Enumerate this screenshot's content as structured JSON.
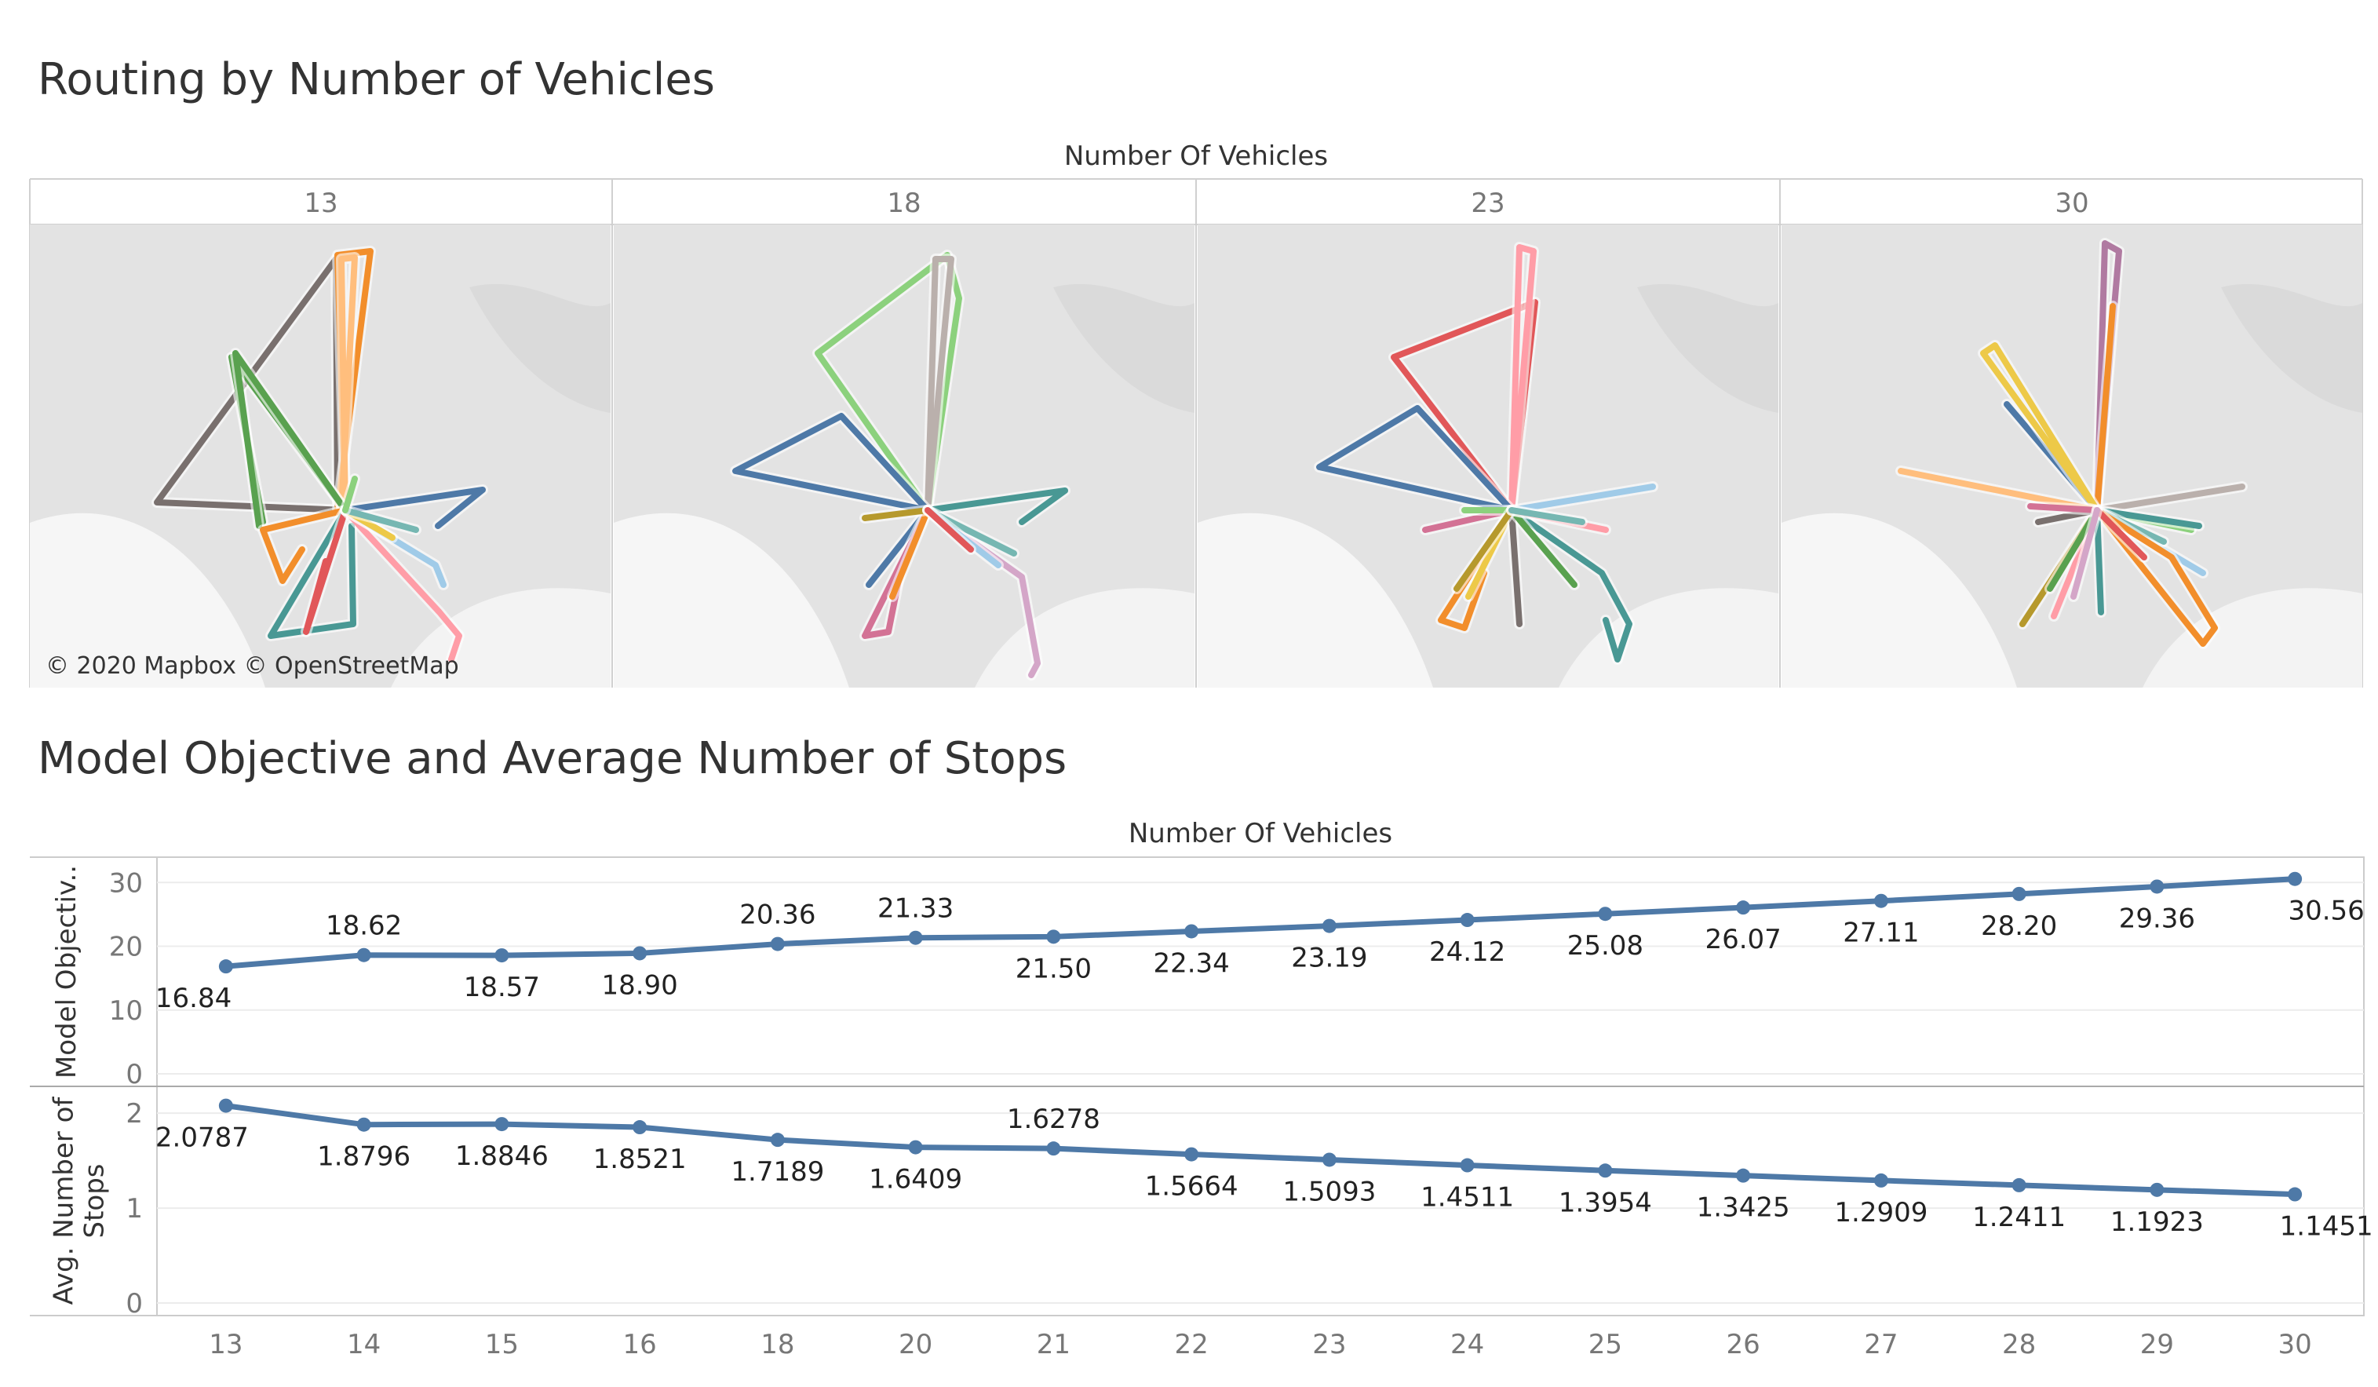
{
  "titles": {
    "routing": "Routing by Number of Vehicles",
    "objective": "Model Objective and Average Number of Stops"
  },
  "maps": {
    "header": "Number Of Vehicles",
    "columns": [
      "13",
      "18",
      "23",
      "30"
    ],
    "attribution": "© 2020 Mapbox © OpenStreetMap",
    "route_colors": [
      "#4e79a7",
      "#f28e2b",
      "#e15759",
      "#76b7b2",
      "#59a14f",
      "#edc948",
      "#b07aa1",
      "#ff9da7",
      "#9c755f",
      "#bab0ac",
      "#79706e",
      "#8cd17d",
      "#499894",
      "#d37295",
      "#a0cbe8",
      "#ffbe7d",
      "#b6992d",
      "#d4a6c8"
    ]
  },
  "chart_data": {
    "type": "line",
    "header": "Number Of Vehicles",
    "x": [
      13,
      14,
      15,
      16,
      18,
      20,
      21,
      22,
      23,
      24,
      25,
      26,
      27,
      28,
      29,
      30
    ],
    "series": [
      {
        "name": "Model Objectiv..",
        "values": [
          16.84,
          18.62,
          18.57,
          18.9,
          20.36,
          21.33,
          21.5,
          22.34,
          23.19,
          24.12,
          25.08,
          26.07,
          27.11,
          28.2,
          29.36,
          30.56
        ],
        "labels": [
          "16.84",
          "18.62",
          "18.57",
          "18.90",
          "20.36",
          "21.33",
          "21.50",
          "22.34",
          "23.19",
          "24.12",
          "25.08",
          "26.07",
          "27.11",
          "28.20",
          "29.36",
          "30.56"
        ],
        "ylim": [
          0,
          32
        ],
        "yticks": [
          "0",
          "10",
          "20",
          "30"
        ]
      },
      {
        "name": "Avg. Number of Stops",
        "values": [
          2.0787,
          1.8796,
          1.8846,
          1.8521,
          1.7189,
          1.6409,
          1.6278,
          1.5664,
          1.5093,
          1.4511,
          1.3954,
          1.3425,
          1.2909,
          1.2411,
          1.1923,
          1.1451
        ],
        "labels": [
          "2.0787",
          "1.8796",
          "1.8846",
          "1.8521",
          "1.7189",
          "1.6409",
          "1.6278",
          "1.5664",
          "1.5093",
          "1.4511",
          "1.3954",
          "1.3425",
          "1.2909",
          "1.2411",
          "1.1923",
          "1.1451"
        ],
        "ylim": [
          0,
          2.15
        ],
        "yticks": [
          "0",
          "1",
          "2"
        ]
      }
    ],
    "color": "#4e79a7",
    "grid": true
  }
}
